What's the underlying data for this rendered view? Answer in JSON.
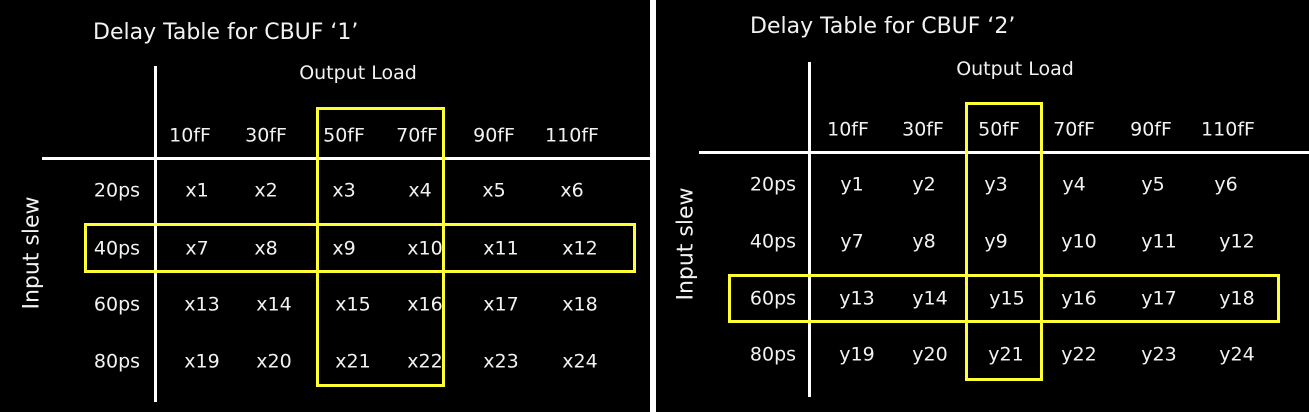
{
  "tables": [
    {
      "title": "Delay Table for CBUF ‘1’",
      "col_header": "Output Load",
      "row_header": "Input slew",
      "columns": [
        "10fF",
        "30fF",
        "50fF",
        "70fF",
        "90fF",
        "110fF"
      ],
      "rows": [
        {
          "label": "20ps",
          "cells": [
            "x1",
            "x2",
            "x3",
            "x4",
            "x5",
            "x6"
          ]
        },
        {
          "label": "40ps",
          "cells": [
            "x7",
            "x8",
            "x9",
            "x10",
            "x11",
            "x12"
          ]
        },
        {
          "label": "60ps",
          "cells": [
            "x13",
            "x14",
            "x15",
            "x16",
            "x17",
            "x18"
          ]
        },
        {
          "label": "80ps",
          "cells": [
            "x19",
            "x20",
            "x21",
            "x22",
            "x23",
            "x24"
          ]
        }
      ],
      "highlight_columns": [
        "50fF",
        "70fF"
      ],
      "highlight_row": "40ps",
      "highlight_color": "#ffff33"
    },
    {
      "title": "Delay Table for CBUF ‘2’",
      "col_header": "Output Load",
      "row_header": "Input slew",
      "columns": [
        "10fF",
        "30fF",
        "50fF",
        "70fF",
        "90fF",
        "110fF"
      ],
      "rows": [
        {
          "label": "20ps",
          "cells": [
            "y1",
            "y2",
            "y3",
            "y4",
            "y5",
            "y6"
          ]
        },
        {
          "label": "40ps",
          "cells": [
            "y7",
            "y8",
            "y9",
            "y10",
            "y11",
            "y12"
          ]
        },
        {
          "label": "60ps",
          "cells": [
            "y13",
            "y14",
            "y15",
            "y16",
            "y17",
            "y18"
          ]
        },
        {
          "label": "80ps",
          "cells": [
            "y19",
            "y20",
            "y21",
            "y22",
            "y23",
            "y24"
          ]
        }
      ],
      "highlight_columns": [
        "50fF"
      ],
      "highlight_row": "60ps",
      "highlight_color": "#ffff33"
    }
  ]
}
